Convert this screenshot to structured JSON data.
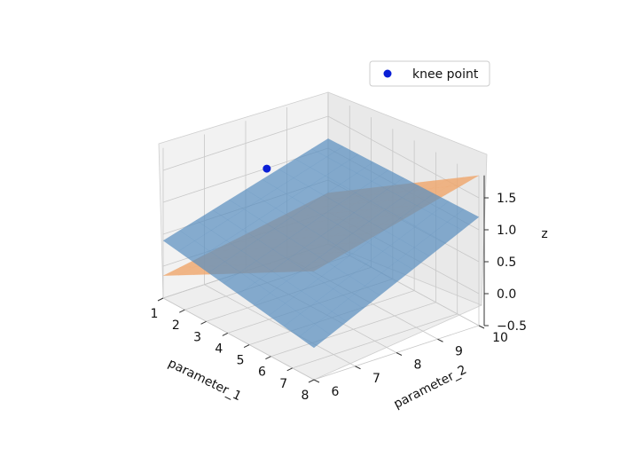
{
  "chart_data": {
    "type": "surface3d",
    "xlabel": "parameter_1",
    "ylabel": "parameter_2",
    "zlabel": "z",
    "x_ticks": [
      1,
      2,
      3,
      4,
      5,
      6,
      7,
      8
    ],
    "y_ticks": [
      6,
      7,
      8,
      9,
      10
    ],
    "z_ticks": [
      "−0.5",
      "0.0",
      "0.5",
      "1.0",
      "1.5"
    ],
    "xlim": [
      1,
      8
    ],
    "ylim": [
      6,
      10
    ],
    "zlim": [
      -0.5,
      1.85
    ],
    "legend": {
      "label": "knee point",
      "placement": "top-right"
    },
    "surfaces": [
      {
        "name": "blue surface",
        "color": "#5a8fbf",
        "z_corners": {
          "x1_y6": 0.4,
          "x1_y10": 1.15,
          "x8_y6": 0.0,
          "x8_y10": 1.2
        }
      },
      {
        "name": "orange plane",
        "color": "#f0a468",
        "z_corners": {
          "x1_y6": -0.15,
          "x1_y10": 0.3,
          "x8_y6": 1.2,
          "x8_y10": 1.85
        }
      }
    ],
    "knee_point": {
      "x": 1.6,
      "y": 8.2,
      "z": 1.17,
      "color": "#0a1fd6"
    }
  }
}
